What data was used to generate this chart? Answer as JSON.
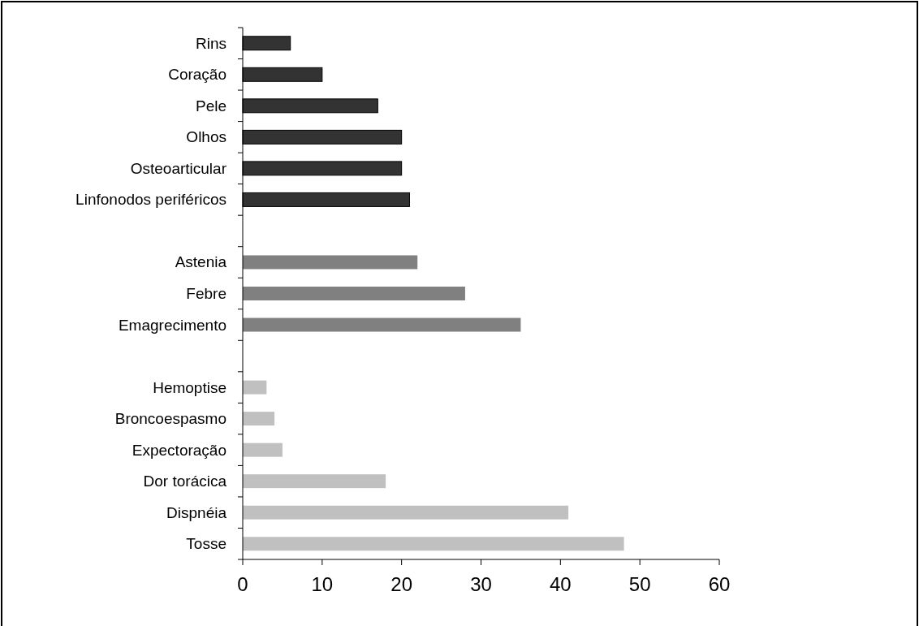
{
  "chart_data": {
    "type": "bar",
    "orientation": "horizontal",
    "categories": [
      "Rins",
      "Coração",
      "Pele",
      "Olhos",
      "Osteoarticular",
      "Linfonodos periféricos",
      null,
      "Astenia",
      "Febre",
      "Emagrecimento",
      null,
      "Hemoptise",
      "Broncoespasmo",
      "Expectoração",
      "Dor torácica",
      "Dispnéia",
      "Tosse"
    ],
    "values": [
      6,
      10,
      17,
      20,
      20,
      21,
      null,
      22,
      28,
      35,
      null,
      3,
      4,
      5,
      18,
      41,
      48
    ],
    "colors": [
      "#333333",
      "#333333",
      "#333333",
      "#333333",
      "#333333",
      "#333333",
      null,
      "#808080",
      "#808080",
      "#808080",
      null,
      "#c0c0c0",
      "#c0c0c0",
      "#c0c0c0",
      "#c0c0c0",
      "#c0c0c0",
      "#c0c0c0"
    ],
    "xlim": [
      0,
      60
    ],
    "xticks": [
      0,
      10,
      20,
      30,
      40,
      50,
      60
    ]
  }
}
